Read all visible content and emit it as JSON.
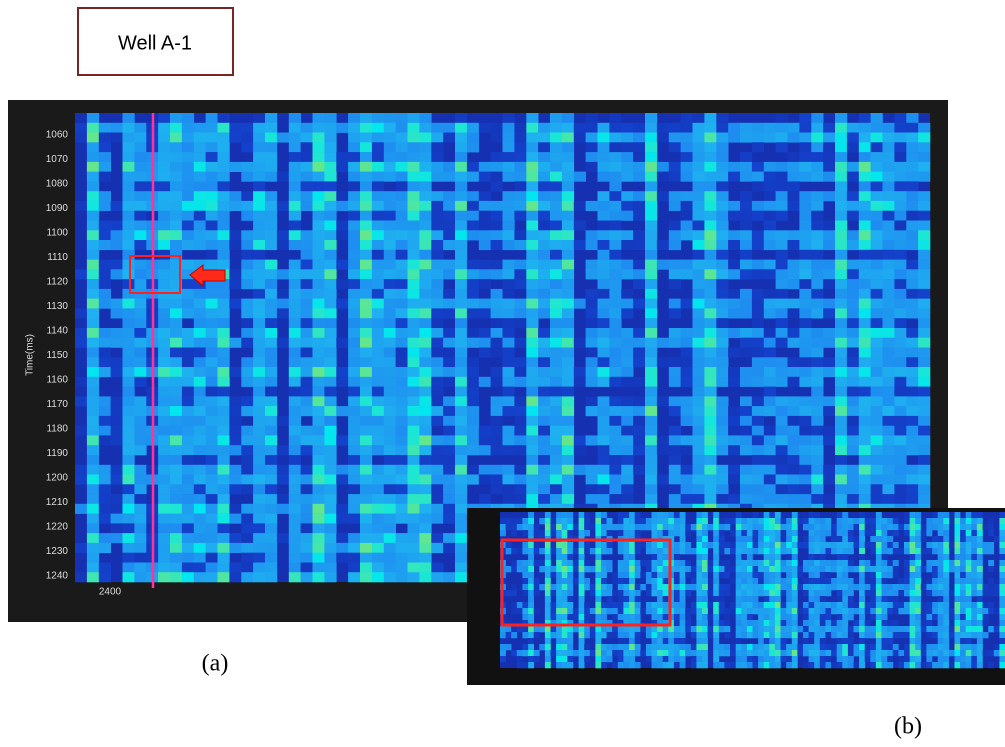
{
  "label_box": {
    "text": "Well A-1"
  },
  "panel_a": {
    "y_label": "Time(ms)",
    "yticks": [
      1060,
      1070,
      1080,
      1090,
      1100,
      1110,
      1120,
      1130,
      1140,
      1150,
      1160,
      1170,
      1180,
      1190,
      1200,
      1210,
      1220,
      1230,
      1240
    ],
    "xticks": [
      2400
    ],
    "caption": "(a)"
  },
  "panel_b": {
    "caption": "(b)"
  }
}
